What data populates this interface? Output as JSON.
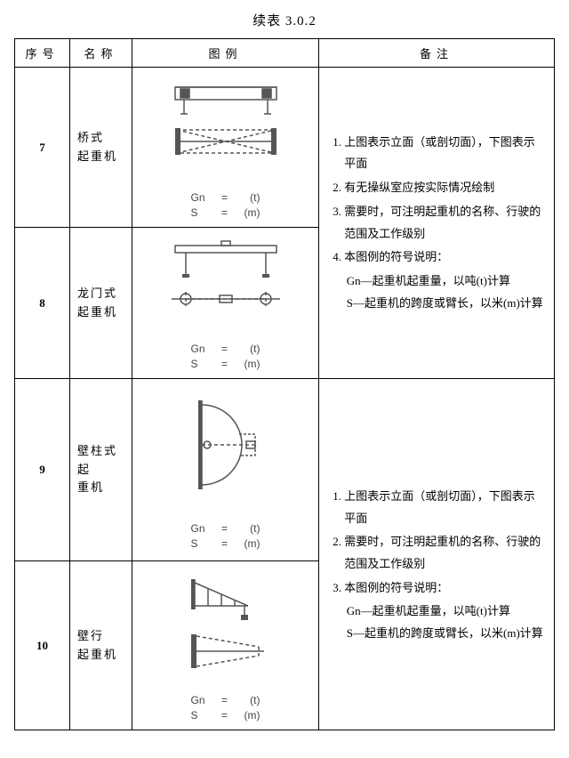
{
  "caption": "续表 3.0.2",
  "headers": {
    "seq": "序号",
    "name": "名称",
    "diagram": "图例",
    "notes": "备注"
  },
  "eq": {
    "gn_label": "Gn",
    "s_label": "S",
    "assign": "=",
    "unit_t": "(t)",
    "unit_m": "(m)"
  },
  "rows": [
    {
      "seq": "7",
      "name": "桥式\n起重机"
    },
    {
      "seq": "8",
      "name": "龙门式\n起重机"
    },
    {
      "seq": "9",
      "name": "壁柱式起\n重机"
    },
    {
      "seq": "10",
      "name": "壁行\n起重机"
    }
  ],
  "notes_a": {
    "items": [
      "上图表示立面（或剖切面），下图表示平面",
      "有无操纵室应按实际情况绘制",
      "需要时，可注明起重机的名称、行驶的范围及工作级别",
      "本图例的符号说明："
    ],
    "sub1": "Gn—起重机起重量，以吨(t)计算",
    "sub2": "S—起重机的跨度或臂长，以米(m)计算"
  },
  "notes_b": {
    "items": [
      "上图表示立面（或剖切面），下图表示平面",
      "需要时，可注明起重机的名称、行驶的范围及工作级别",
      "本图例的符号说明："
    ],
    "sub1": "Gn—起重机起重量，以吨(t)计算",
    "sub2": "S—起重机的跨度或臂长，以米(m)计算"
  },
  "style": {
    "stroke": "#555",
    "dash": "4,3",
    "fill_solid": "#555",
    "font_eq": 12
  }
}
